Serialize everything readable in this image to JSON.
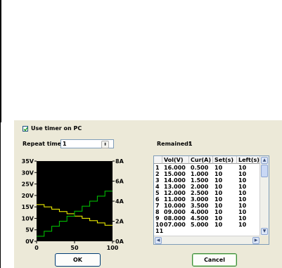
{
  "options": {
    "use_timer_label": "Use timer on PC",
    "use_timer_checked": true,
    "repeat_label": "Repeat times",
    "repeat_value": "1",
    "remained_label": "Remained:",
    "remained_value": "1"
  },
  "chart_data": {
    "type": "line",
    "xlim": [
      0,
      100
    ],
    "x_ticks": [
      "0",
      "50",
      "100"
    ],
    "y_left_ticks": [
      "35V",
      "30V",
      "25V",
      "20V",
      "15V",
      "10V",
      "5V",
      "0V"
    ],
    "y_right_ticks": [
      "8A",
      "6A",
      "4A",
      "2A",
      "0A"
    ],
    "y_left_lim": [
      0,
      35
    ],
    "y_right_lim": [
      0,
      8
    ],
    "background": "#000000",
    "series": [
      {
        "axis": "left",
        "color": "#ffff00",
        "values": [
          16.0,
          15.0,
          14.0,
          13.0,
          12.0,
          11.0,
          10.0,
          9.0,
          8.0,
          7.0
        ]
      },
      {
        "axis": "right",
        "color": "#00cc00",
        "values": [
          0.5,
          1.0,
          1.5,
          2.0,
          2.5,
          3.0,
          3.5,
          4.0,
          4.5,
          5.0
        ]
      }
    ]
  },
  "table": {
    "columns": [
      "Vol(V)",
      "Cur(A)",
      "Set(s)",
      "Left(s)"
    ],
    "rows": [
      [
        "1",
        "16.000",
        "0.500",
        "10",
        "10"
      ],
      [
        "2",
        "15.000",
        "1.000",
        "10",
        "10"
      ],
      [
        "3",
        "14.000",
        "1.500",
        "10",
        "10"
      ],
      [
        "4",
        "13.000",
        "2.000",
        "10",
        "10"
      ],
      [
        "5",
        "12.000",
        "2.500",
        "10",
        "10"
      ],
      [
        "6",
        "11.000",
        "3.000",
        "10",
        "10"
      ],
      [
        "7",
        "10.000",
        "3.500",
        "10",
        "10"
      ],
      [
        "8",
        "09.000",
        "4.000",
        "10",
        "10"
      ],
      [
        "9",
        "08.000",
        "4.500",
        "10",
        "10"
      ],
      [
        "10",
        "07.000",
        "5.000",
        "10",
        "10"
      ],
      [
        "11",
        "",
        "",
        "",
        ""
      ]
    ]
  },
  "buttons": {
    "ok": "OK",
    "cancel": "Cancel"
  },
  "icons": {
    "spin": "up-down-arrows-icon",
    "scroll_up": "arrow-up-icon",
    "scroll_down": "arrow-down-icon",
    "scroll_left": "arrow-left-icon",
    "scroll_right": "arrow-right-icon"
  }
}
